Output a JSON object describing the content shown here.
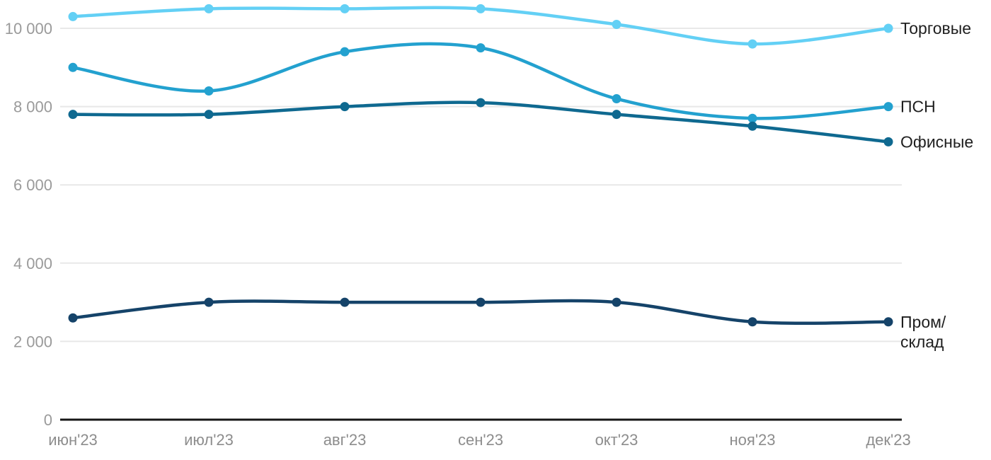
{
  "chart_data": {
    "type": "line",
    "title": "",
    "xlabel": "",
    "ylabel": "",
    "x_categories": [
      "июн'23",
      "июл'23",
      "авг'23",
      "сен'23",
      "окт'23",
      "ноя'23",
      "дек'23"
    ],
    "y_ticks": [
      {
        "value": 0,
        "label": "0"
      },
      {
        "value": 2000,
        "label": "2 000"
      },
      {
        "value": 4000,
        "label": "4 000"
      },
      {
        "value": 6000,
        "label": "6 000"
      },
      {
        "value": 8000,
        "label": "8 000"
      },
      {
        "value": 10000,
        "label": "10 000"
      }
    ],
    "ylim": [
      0,
      10800
    ],
    "grid": "horizontal",
    "legend_position": "right-end-of-lines",
    "series": [
      {
        "name": "Торговые",
        "label_lines": [
          "Торговые"
        ],
        "color": "#63d0f5",
        "values": [
          10300,
          10500,
          10500,
          10500,
          10100,
          9600,
          10000
        ]
      },
      {
        "name": "ПСН",
        "label_lines": [
          "ПСН"
        ],
        "color": "#23a1cf",
        "values": [
          9000,
          8400,
          9400,
          9500,
          8200,
          7700,
          8000
        ]
      },
      {
        "name": "Офисные",
        "label_lines": [
          "Офисные"
        ],
        "color": "#0f6990",
        "values": [
          7800,
          7800,
          8000,
          8100,
          7800,
          7500,
          7100
        ]
      },
      {
        "name": "Пром/склад",
        "label_lines": [
          "Пром/",
          "склад"
        ],
        "color": "#154369",
        "values": [
          2600,
          3000,
          3000,
          3000,
          3000,
          2500,
          2500
        ]
      }
    ],
    "colors": {
      "background": "#ffffff",
      "gridline": "#e8e8e8",
      "axis_line": "#161616",
      "ytick_text": "#9a9a9a",
      "xtick_text": "#8d8d8d",
      "series_label_text": "#1f1f1f"
    }
  }
}
